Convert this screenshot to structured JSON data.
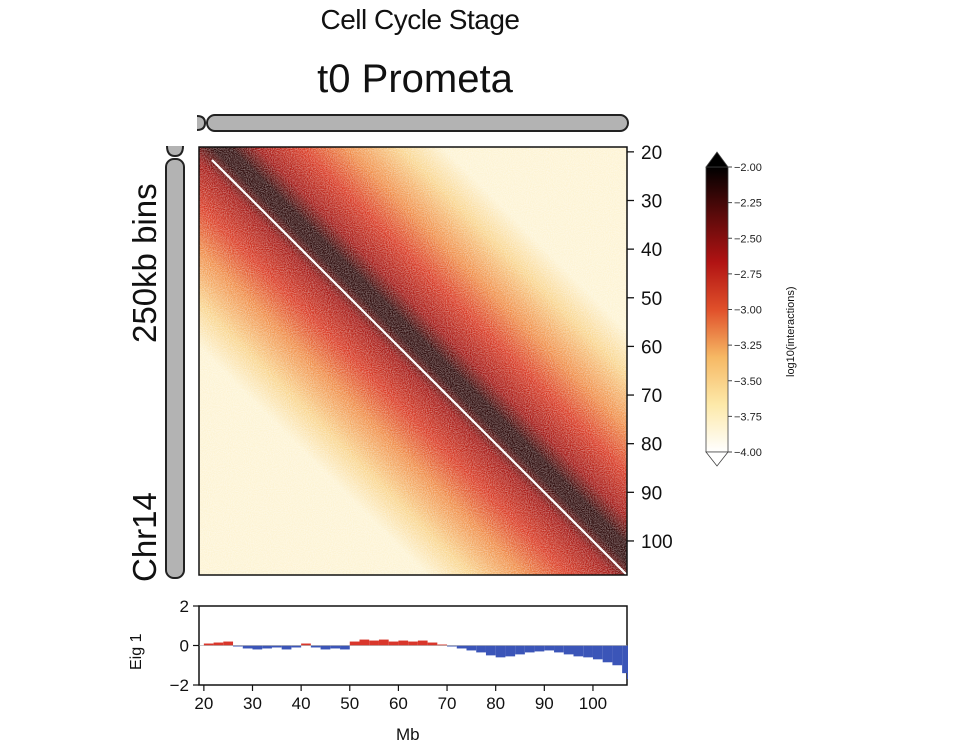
{
  "header": {
    "stage_label": "Cell Cycle Stage",
    "title": "t0 Prometa"
  },
  "side_labels": {
    "resolution": "250kb bins",
    "chromosome": "Chr14"
  },
  "chart_data": [
    {
      "type": "heatmap",
      "title": "t0 Prometa",
      "description": "Hi-C contact matrix, Chr14, 250kb bins",
      "xlim": [
        19,
        107
      ],
      "ylim": [
        19,
        107
      ],
      "y_ticks": [
        "20",
        "30",
        "40",
        "50",
        "60",
        "70",
        "80",
        "90",
        "100"
      ],
      "diagonal": "top-left to bottom-right",
      "color_scale": {
        "label": "log10(interactions)",
        "range": [
          -4.0,
          -2.0
        ],
        "ticks": [
          "-2.00",
          "-2.25",
          "-2.50",
          "-2.75",
          "-3.00",
          "-3.25",
          "-3.50",
          "-3.75",
          "-4.00"
        ],
        "colormap": [
          "#ffffff",
          "#fde9a9",
          "#f6b864",
          "#e0502a",
          "#b01313",
          "#5a0a0a",
          "#000000"
        ]
      }
    },
    {
      "type": "area",
      "ylabel": "Eig 1",
      "xlabel": "Mb",
      "ylim": [
        -2,
        2
      ],
      "y_ticks": [
        "2",
        "0",
        "−2"
      ],
      "x_ticks": [
        "20",
        "30",
        "40",
        "50",
        "60",
        "70",
        "80",
        "90",
        "100"
      ],
      "positive_color": "#d9362b",
      "negative_color": "#3b55b8",
      "series": [
        {
          "x": [
            20,
            22,
            24,
            26,
            28,
            30,
            32,
            34,
            36,
            38,
            40,
            42,
            44,
            46,
            48,
            50,
            52,
            54,
            56,
            58,
            60,
            62,
            64,
            66,
            68,
            70,
            72,
            74,
            76,
            78,
            80,
            82,
            84,
            86,
            88,
            90,
            92,
            94,
            96,
            98,
            100,
            102,
            104,
            106,
            107
          ],
          "values": [
            0.1,
            0.15,
            0.2,
            -0.05,
            -0.15,
            -0.2,
            -0.15,
            -0.1,
            -0.2,
            -0.1,
            0.1,
            -0.1,
            -0.2,
            -0.15,
            -0.2,
            0.2,
            0.3,
            0.25,
            0.3,
            0.2,
            0.25,
            0.2,
            0.25,
            0.15,
            0.05,
            -0.05,
            -0.15,
            -0.25,
            -0.35,
            -0.5,
            -0.6,
            -0.55,
            -0.45,
            -0.35,
            -0.3,
            -0.25,
            -0.35,
            -0.45,
            -0.55,
            -0.6,
            -0.7,
            -0.85,
            -1.0,
            -1.4,
            -1.7
          ]
        }
      ]
    }
  ]
}
